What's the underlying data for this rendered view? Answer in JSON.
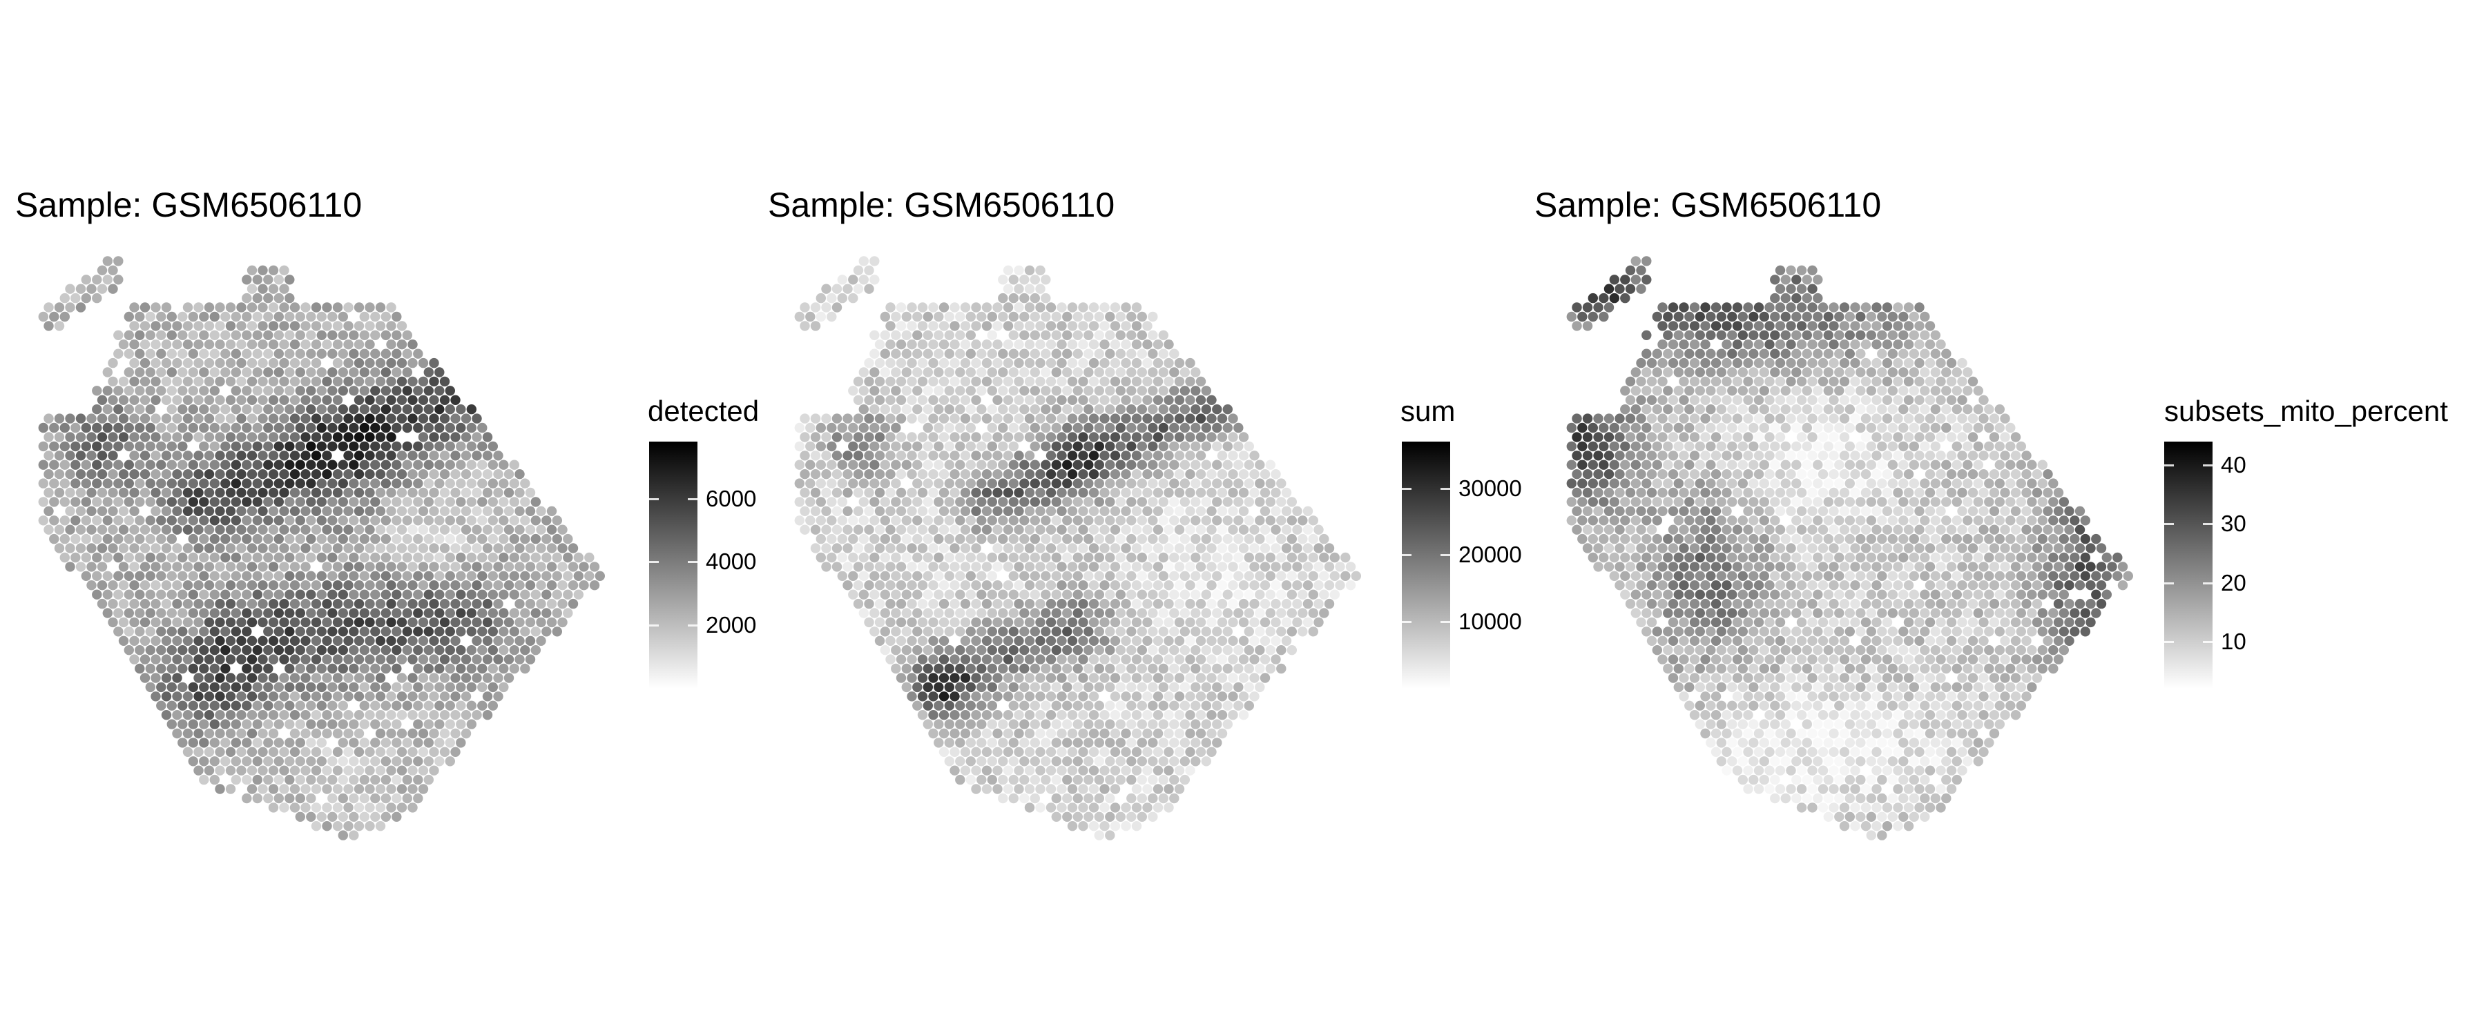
{
  "chart_data": [
    {
      "type": "scatter",
      "title": "Sample: GSM6506110",
      "legend_title": "detected",
      "color_range": [
        0,
        7800
      ],
      "legend_ticks": [
        2000,
        4000,
        6000
      ],
      "colors": {
        "low": "#ffffff",
        "high": "#000000"
      },
      "legend_placement": "right",
      "grid": false
    },
    {
      "type": "scatter",
      "title": "Sample: GSM6506110",
      "legend_title": "sum",
      "color_range": [
        0,
        37000
      ],
      "legend_ticks": [
        10000,
        20000,
        30000
      ],
      "colors": {
        "low": "#ffffff",
        "high": "#000000"
      },
      "legend_placement": "right",
      "grid": false
    },
    {
      "type": "scatter",
      "title": "Sample: GSM6506110",
      "legend_title": "subsets_mito_percent",
      "color_range": [
        2,
        44
      ],
      "legend_ticks": [
        10,
        20,
        30,
        40
      ],
      "colors": {
        "low": "#ffffff",
        "high": "#000000"
      },
      "legend_placement": "right",
      "grid": false
    }
  ]
}
